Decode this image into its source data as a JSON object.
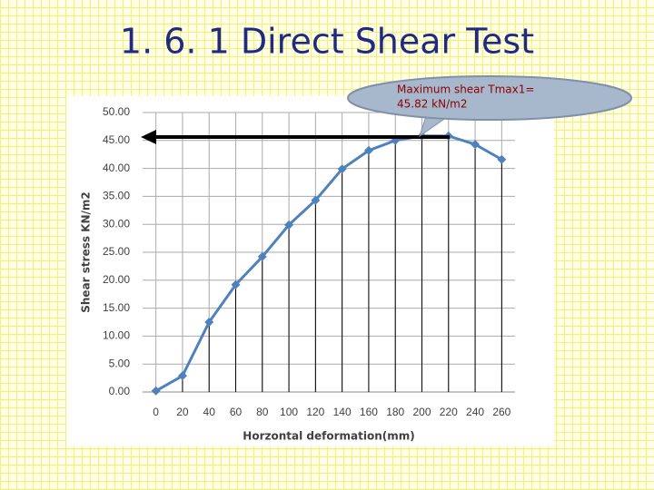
{
  "chart_data": {
    "type": "line",
    "title": "1. 6. 1 Direct Shear Test",
    "x_label": "Horzontal deformation(mm)",
    "y_label": "Shear stress KN/m2",
    "annotation": [
      "Maximum shear Tmax1=",
      "45.82 kN/m2"
    ],
    "x": [
      0,
      20,
      40,
      60,
      80,
      100,
      120,
      140,
      160,
      180,
      200,
      220,
      240,
      260
    ],
    "series": [
      {
        "name": "Shear stress",
        "color": "#4f81bd",
        "values": [
          0.2,
          2.9,
          12.5,
          19.2,
          24.2,
          29.9,
          34.3,
          39.9,
          43.2,
          45,
          45.82,
          45.8,
          44.3,
          41.6
        ]
      }
    ],
    "xlim": [
      -10,
      270
    ],
    "xticks": [
      0,
      20,
      40,
      60,
      80,
      100,
      120,
      140,
      160,
      180,
      200,
      220,
      240,
      260
    ],
    "ylim": [
      0,
      50
    ],
    "yticks": [
      {
        "value": 0,
        "label": "0.00"
      },
      {
        "value": 5,
        "label": "5.00"
      },
      {
        "value": 10,
        "label": "10.00"
      },
      {
        "value": 15,
        "label": "15.00"
      },
      {
        "value": 20,
        "label": "20.00"
      },
      {
        "value": 25,
        "label": "25.00"
      },
      {
        "value": 30,
        "label": "30.00"
      },
      {
        "value": 35,
        "label": "35.00"
      },
      {
        "value": 40,
        "label": "40.00"
      },
      {
        "value": 45,
        "label": "45.00"
      },
      {
        "value": 50,
        "label": "50.00"
      }
    ],
    "grid": true
  }
}
